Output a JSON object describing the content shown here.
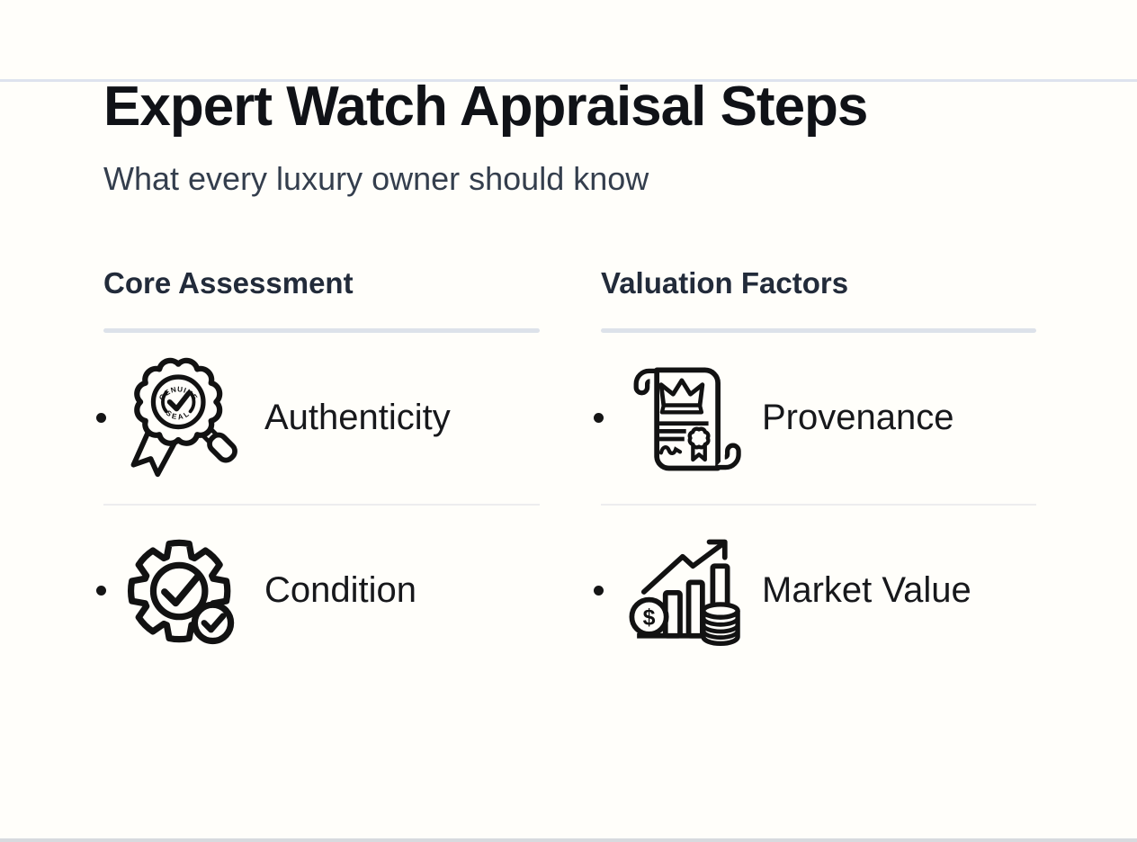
{
  "page": {
    "title": "Expert Watch Appraisal Steps",
    "subtitle": "What every luxury owner should know"
  },
  "columns": [
    {
      "title": "Core Assessment",
      "items": [
        {
          "label": "Authenticity",
          "icon": "genuine-seal-magnifier-icon"
        },
        {
          "label": "Condition",
          "icon": "gear-checkmarks-icon"
        }
      ]
    },
    {
      "title": "Valuation Factors",
      "items": [
        {
          "label": "Provenance",
          "icon": "certificate-scroll-crown-icon"
        },
        {
          "label": "Market Value",
          "icon": "growth-chart-coins-icon"
        }
      ]
    }
  ],
  "icon_text": {
    "seal_top": "GENUINE",
    "seal_bottom": "SEAL",
    "currency_symbol": "$"
  },
  "colors": {
    "background": "#fffefa",
    "title": "#101217",
    "subtitle": "#343e4d",
    "column_heading": "#222b3a",
    "heading_rule": "#dde2ea",
    "row_divider": "#ededee",
    "label": "#17181b",
    "icon_stroke": "#121212",
    "top_edge": "#dee3ee",
    "bottom_edge": "#d7dade"
  }
}
